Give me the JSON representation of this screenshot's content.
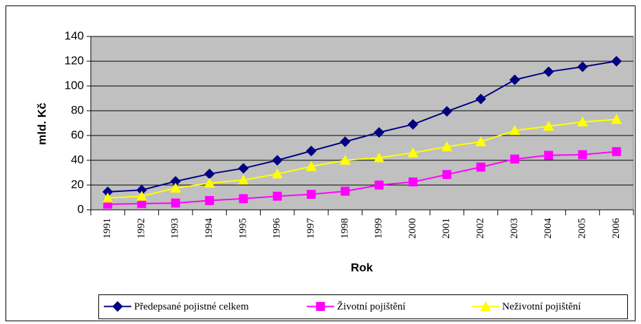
{
  "chart_data": {
    "type": "line",
    "y_label": "mld. Kč",
    "x_label": "Rok",
    "categories": [
      "1991",
      "1992",
      "1993",
      "1994",
      "1995",
      "1996",
      "1997",
      "1998",
      "1999",
      "2000",
      "2001",
      "2002",
      "2003",
      "2004",
      "2005",
      "2006"
    ],
    "series": [
      {
        "name": "Předepsané pojistné celkem",
        "color": "#000080",
        "marker": "diamond",
        "values": [
          14.5,
          16,
          23,
          29,
          33.5,
          40,
          47.5,
          55,
          62.5,
          69,
          79.5,
          89.5,
          105,
          111.5,
          115.5,
          120
        ]
      },
      {
        "name": "Životní pojištění",
        "color": "#ff00ff",
        "marker": "square",
        "values": [
          4.5,
          5,
          5.5,
          7.5,
          9,
          11,
          12.5,
          15,
          20,
          22.5,
          28.5,
          34.5,
          41,
          44,
          44.5,
          47
        ]
      },
      {
        "name": "Neživotní pojištění",
        "color": "#ffff00",
        "marker": "triangle",
        "values": [
          9.5,
          11,
          17.5,
          21.5,
          24,
          29,
          35,
          40,
          42,
          46,
          51,
          55,
          64,
          67.5,
          71,
          73
        ]
      }
    ],
    "ylim": [
      0,
      140
    ],
    "yticks": [
      0,
      20,
      40,
      60,
      80,
      100,
      120,
      140
    ],
    "grid": true,
    "legend": "bottom"
  }
}
